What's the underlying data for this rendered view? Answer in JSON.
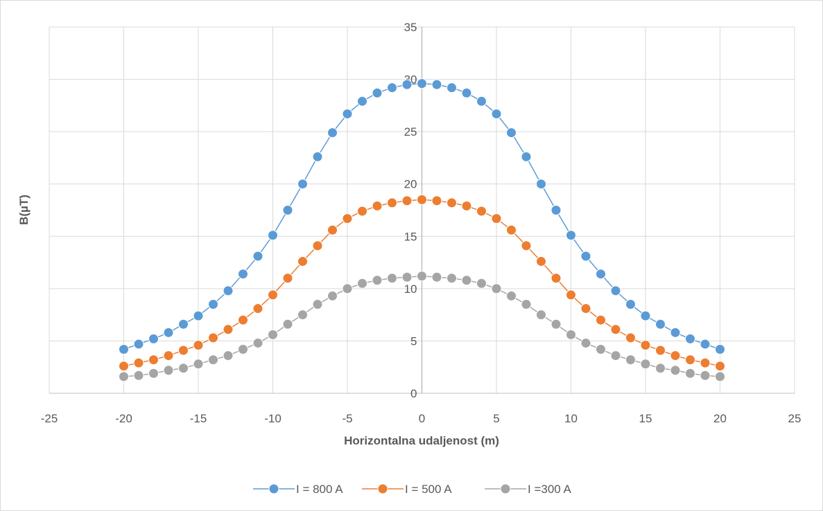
{
  "chart_data": {
    "type": "scatter",
    "xlabel": "Horizontalna udaljenost (m)",
    "ylabel": "B(µT)",
    "xlim": [
      -25,
      25
    ],
    "ylim": [
      0,
      35
    ],
    "xticks": [
      -25,
      -20,
      -15,
      -10,
      -5,
      0,
      5,
      10,
      15,
      20,
      25
    ],
    "yticks": [
      0,
      5,
      10,
      15,
      20,
      25,
      30,
      35
    ],
    "grid": true,
    "legend_position": "bottom",
    "x": [
      -20,
      -19,
      -18,
      -17,
      -16,
      -15,
      -14,
      -13,
      -12,
      -11,
      -10,
      -9,
      -8,
      -7,
      -6,
      -5,
      -4,
      -3,
      -2,
      -1,
      0,
      1,
      2,
      3,
      4,
      5,
      6,
      7,
      8,
      9,
      10,
      11,
      12,
      13,
      14,
      15,
      16,
      17,
      18,
      19,
      20
    ],
    "series": [
      {
        "name": "I = 800 A",
        "color": "#5b9bd5",
        "values": [
          4.2,
          4.7,
          5.2,
          5.8,
          6.6,
          7.4,
          8.5,
          9.8,
          11.4,
          13.1,
          15.1,
          17.5,
          20.0,
          22.6,
          24.9,
          26.7,
          27.9,
          28.7,
          29.2,
          29.5,
          29.6,
          29.5,
          29.2,
          28.7,
          27.9,
          26.7,
          24.9,
          22.6,
          20.0,
          17.5,
          15.1,
          13.1,
          11.4,
          9.8,
          8.5,
          7.4,
          6.6,
          5.8,
          5.2,
          4.7,
          4.2
        ]
      },
      {
        "name": "I = 500 A",
        "color": "#ed7d31",
        "values": [
          2.6,
          2.9,
          3.2,
          3.6,
          4.1,
          4.6,
          5.3,
          6.1,
          7.0,
          8.1,
          9.4,
          11.0,
          12.6,
          14.1,
          15.6,
          16.7,
          17.4,
          17.9,
          18.2,
          18.4,
          18.5,
          18.4,
          18.2,
          17.9,
          17.4,
          16.7,
          15.6,
          14.1,
          12.6,
          11.0,
          9.4,
          8.1,
          7.0,
          6.1,
          5.3,
          4.6,
          4.1,
          3.6,
          3.2,
          2.9,
          2.6
        ]
      },
      {
        "name": "I =300 A",
        "color": "#a5a5a5",
        "values": [
          1.6,
          1.7,
          1.9,
          2.2,
          2.4,
          2.8,
          3.2,
          3.6,
          4.2,
          4.8,
          5.6,
          6.6,
          7.5,
          8.5,
          9.3,
          10.0,
          10.5,
          10.8,
          11.0,
          11.1,
          11.2,
          11.1,
          11.0,
          10.8,
          10.5,
          10.0,
          9.3,
          8.5,
          7.5,
          6.6,
          5.6,
          4.8,
          4.2,
          3.6,
          3.2,
          2.8,
          2.4,
          2.2,
          1.9,
          1.7,
          1.6
        ]
      }
    ]
  }
}
